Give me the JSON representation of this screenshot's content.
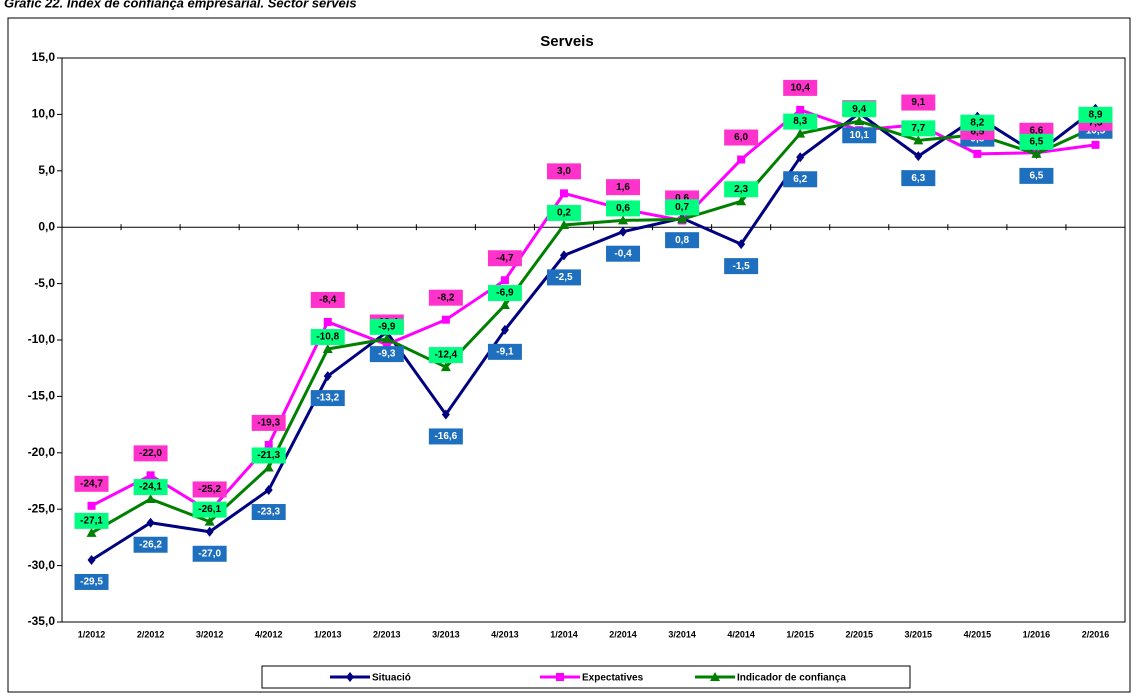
{
  "chart_data": {
    "type": "line",
    "heading": "Gràfic 22. Índex de confiança empresarial. Sector serveis",
    "title": "Serveis",
    "categories": [
      "1/2012",
      "2/2012",
      "3/2012",
      "4/2012",
      "1/2013",
      "2/2013",
      "3/2013",
      "4/2013",
      "1/2014",
      "2/2014",
      "3/2014",
      "4/2014",
      "1/2015",
      "2/2015",
      "3/2015",
      "4/2015",
      "1/2016",
      "2/2016"
    ],
    "ylim": [
      -35,
      15
    ],
    "yticks": [
      {
        "value": -35,
        "label": "-35,0"
      },
      {
        "value": -30,
        "label": "-30,0"
      },
      {
        "value": -25,
        "label": "-25,0"
      },
      {
        "value": -20,
        "label": "-20,0"
      },
      {
        "value": -15,
        "label": "-15,0"
      },
      {
        "value": -10,
        "label": "-10,0"
      },
      {
        "value": -5,
        "label": "-5,0"
      },
      {
        "value": 0,
        "label": "0,0"
      },
      {
        "value": 5,
        "label": "5,0"
      },
      {
        "value": 10,
        "label": "10,0"
      },
      {
        "value": 15,
        "label": "15,0"
      }
    ],
    "series": [
      {
        "name": "Situació",
        "color": "#000080",
        "marker": "diamond",
        "label_fill": "#1f6fbf",
        "label_text_color": "#ffffff",
        "values": [
          -29.5,
          -26.2,
          -27.0,
          -23.3,
          -13.2,
          -9.3,
          -16.6,
          -9.1,
          -2.5,
          -0.4,
          0.8,
          -1.5,
          6.2,
          10.1,
          6.3,
          9.8,
          6.5,
          10.5
        ],
        "value_labels": [
          "-29,5",
          "-26,2",
          "-27,0",
          "-23,3",
          "-13,2",
          "-9,3",
          "-16,6",
          "-9,1",
          "-2,5",
          "-0,4",
          "0,8",
          "-1,5",
          "6,2",
          "10,1",
          "6,3",
          "9,8",
          "6,5",
          "10,5"
        ]
      },
      {
        "name": "Expectatives",
        "color": "#ff00ff",
        "marker": "square",
        "label_fill": "#ff33cc",
        "label_text_color": "#000000",
        "values": [
          -24.7,
          -22.0,
          -25.2,
          -19.3,
          -8.4,
          -10.4,
          -8.2,
          -4.7,
          3.0,
          1.6,
          0.6,
          6.0,
          10.4,
          8.6,
          9.1,
          6.5,
          6.6,
          7.3
        ],
        "value_labels": [
          "-24,7",
          "-22,0",
          "-25,2",
          "-19,3",
          "-8,4",
          "-10,4",
          "-8,2",
          "-4,7",
          "3,0",
          "1,6",
          "0,6",
          "6,0",
          "10,4",
          "8,6",
          "9,1",
          "6,5",
          "6,6",
          "7,3"
        ]
      },
      {
        "name": "Indicador de confiança",
        "color": "#008000",
        "marker": "triangle",
        "label_fill": "#00ff80",
        "label_text_color": "#000000",
        "values": [
          -27.1,
          -24.1,
          -26.1,
          -21.3,
          -10.8,
          -9.9,
          -12.4,
          -6.9,
          0.2,
          0.6,
          0.7,
          2.3,
          8.3,
          9.4,
          7.7,
          8.2,
          6.5,
          8.9
        ],
        "value_labels": [
          "-27,1",
          "-24,1",
          "-26,1",
          "-21,3",
          "-10,8",
          "-9,9",
          "-12,4",
          "-6,9",
          "0,2",
          "0,6",
          "0,7",
          "2,3",
          "8,3",
          "9,4",
          "7,7",
          "8,2",
          "6,5",
          "8,9"
        ]
      }
    ]
  }
}
